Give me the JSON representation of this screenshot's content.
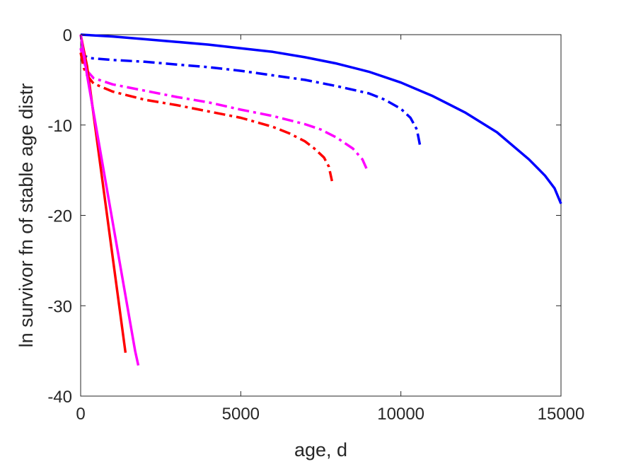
{
  "chart_data": {
    "type": "line",
    "title": "",
    "xlabel": "age, d",
    "ylabel": "ln survivor fn of stable age distr",
    "xlim": [
      0,
      15000
    ],
    "ylim": [
      -40,
      0
    ],
    "xticks": [
      0,
      5000,
      10000,
      15000
    ],
    "yticks": [
      0,
      -10,
      -20,
      -30,
      -40
    ],
    "grid": false,
    "legend": "none",
    "series": [
      {
        "color": "#0000ff",
        "style": "solid",
        "x": [
          0,
          1000,
          2000,
          3000,
          4000,
          5000,
          6000,
          7000,
          8000,
          9000,
          10000,
          11000,
          12000,
          13000,
          14000,
          14500,
          14800,
          15000
        ],
        "y": [
          0,
          -0.2,
          -0.5,
          -0.8,
          -1.1,
          -1.5,
          -1.9,
          -2.5,
          -3.2,
          -4.1,
          -5.3,
          -6.8,
          -8.6,
          -10.8,
          -13.8,
          -15.6,
          -17.0,
          -18.7
        ]
      },
      {
        "color": "#0000ff",
        "style": "dashdot",
        "x": [
          0,
          50,
          150,
          300,
          1000,
          2000,
          3000,
          4000,
          5000,
          6000,
          7000,
          8000,
          9000,
          9500,
          10000,
          10300,
          10500,
          10600
        ],
        "y": [
          -1.5,
          -2.0,
          -2.4,
          -2.6,
          -2.8,
          -3.0,
          -3.3,
          -3.6,
          -4.0,
          -4.5,
          -5.0,
          -5.7,
          -6.5,
          -7.2,
          -8.2,
          -9.2,
          -10.5,
          -12.3
        ]
      },
      {
        "color": "#ff00ff",
        "style": "dashdot",
        "x": [
          0,
          100,
          200,
          400,
          1000,
          2000,
          3000,
          4000,
          5000,
          6000,
          7000,
          7500,
          8000,
          8500,
          8800,
          8950
        ],
        "y": [
          -1.5,
          -3.0,
          -4.0,
          -4.8,
          -5.5,
          -6.2,
          -6.9,
          -7.5,
          -8.3,
          -9.0,
          -9.9,
          -10.5,
          -11.4,
          -12.6,
          -13.8,
          -15.0
        ]
      },
      {
        "color": "#ff0000",
        "style": "dashdot",
        "x": [
          0,
          100,
          200,
          400,
          1000,
          2000,
          3000,
          4000,
          5000,
          6000,
          6500,
          7000,
          7300,
          7600,
          7750,
          7850
        ],
        "y": [
          -2.0,
          -3.7,
          -4.5,
          -5.4,
          -6.3,
          -7.2,
          -7.8,
          -8.5,
          -9.2,
          -10.2,
          -10.9,
          -11.8,
          -12.6,
          -13.6,
          -14.6,
          -16.2
        ]
      },
      {
        "color": "#ff0000",
        "style": "solid",
        "x": [
          0,
          200,
          1400
        ],
        "y": [
          0,
          -3.5,
          -35.2
        ]
      },
      {
        "color": "#ff00ff",
        "style": "solid",
        "x": [
          0,
          200,
          1700,
          1800
        ],
        "y": [
          0,
          -4.5,
          -35.0,
          -36.6
        ]
      }
    ]
  }
}
